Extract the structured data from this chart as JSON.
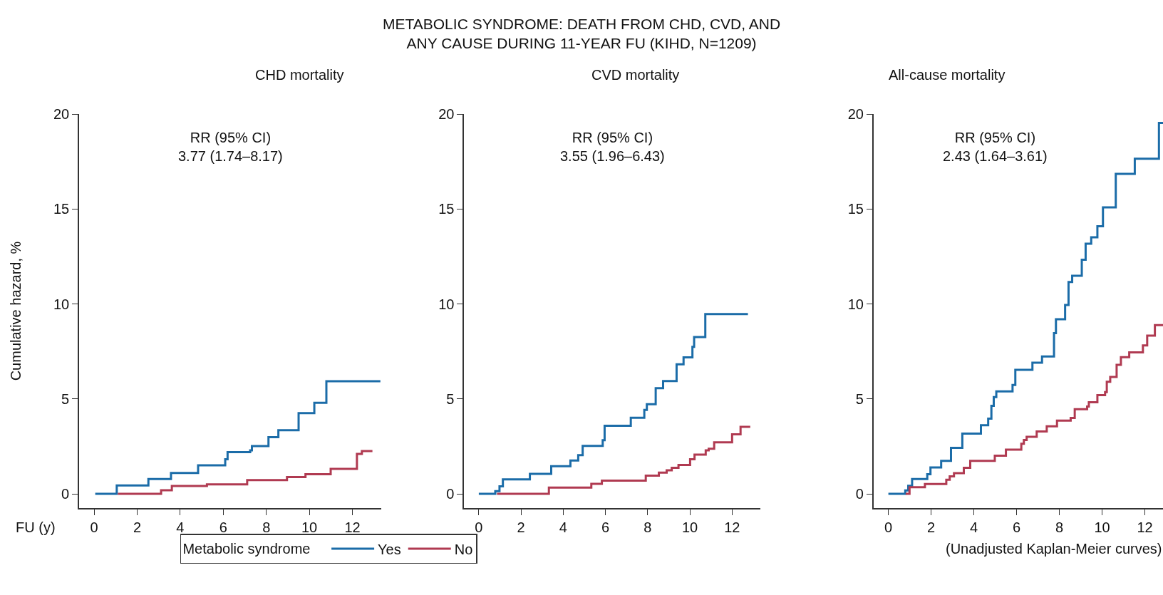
{
  "chart_data": [
    {
      "type": "step",
      "subtitle": "CHD mortality",
      "xlabel": "FU (y)",
      "ylabel": "Cumulative hazard, %",
      "legend_title": "Metabolic syndrome",
      "legend": "bottom",
      "xlim": [
        -0.7,
        13.35
      ],
      "xticks": [
        0,
        2,
        4,
        6,
        8,
        10,
        12
      ],
      "ylim": [
        -0.75,
        20
      ],
      "yticks": [
        0,
        5,
        10,
        15,
        20
      ],
      "annotations": [
        "RR (95% CI)\n3.77 (1.74–8.17)"
      ],
      "series": [
        {
          "name": "Yes",
          "color": "#1b6ca8",
          "x": [
            0.05,
            1.05,
            2.52,
            3.57,
            4.83,
            6.09,
            6.2,
            7.25,
            7.33,
            8.1,
            8.56,
            9.5,
            10.23,
            10.79,
            13.3
          ],
          "values": [
            0,
            0.44,
            0.78,
            1.1,
            1.5,
            1.82,
            2.2,
            2.29,
            2.51,
            2.98,
            3.35,
            4.25,
            4.79,
            5.93,
            5.93
          ]
        },
        {
          "name": "No",
          "color": "#b03a51",
          "x": [
            1.1,
            3.11,
            3.61,
            5.24,
            7.11,
            8.96,
            9.82,
            10.99,
            12.21,
            12.44,
            12.93
          ],
          "values": [
            0,
            0.19,
            0.41,
            0.5,
            0.72,
            0.88,
            1.03,
            1.31,
            2.1,
            2.25,
            2.25
          ]
        }
      ]
    },
    {
      "type": "step",
      "title": "METABOLIC SYNDROME: DEATH FROM CHD, CVD, AND\nANY CAUSE DURING 11-YEAR FU (KIHD, N=1209)",
      "subtitle": "CVD mortality",
      "xlim": [
        -0.7,
        13.35
      ],
      "xticks": [
        0,
        2,
        4,
        6,
        8,
        10,
        12
      ],
      "ylim": [
        -0.75,
        20
      ],
      "yticks": [
        0,
        5,
        10,
        15,
        20
      ],
      "annotations": [
        "RR (95% CI)\n3.55 (1.96–6.43)"
      ],
      "series": [
        {
          "color": "#1b6ca8",
          "x": [
            0,
            0.78,
            0.98,
            1.14,
            2.42,
            3.43,
            4.34,
            4.71,
            4.92,
            5.87,
            5.96,
            7.2,
            7.84,
            7.96,
            8.38,
            8.73,
            9.37,
            9.7,
            10.12,
            10.2,
            10.73,
            12.75
          ],
          "values": [
            0,
            0.14,
            0.39,
            0.76,
            1.05,
            1.45,
            1.75,
            2.04,
            2.52,
            2.82,
            3.58,
            4.01,
            4.42,
            4.72,
            5.56,
            5.94,
            6.82,
            7.19,
            7.74,
            8.26,
            9.47,
            9.47
          ]
        },
        {
          "color": "#b03a51",
          "x": [
            0.86,
            3.32,
            5.33,
            5.83,
            7.91,
            8.53,
            8.9,
            9.14,
            9.46,
            10.01,
            10.22,
            10.75,
            10.89,
            11.15,
            12.0,
            12.4,
            12.86
          ],
          "values": [
            0,
            0.33,
            0.53,
            0.69,
            0.96,
            1.12,
            1.24,
            1.37,
            1.52,
            1.82,
            2.06,
            2.29,
            2.37,
            2.71,
            3.13,
            3.53,
            3.53
          ]
        }
      ]
    },
    {
      "type": "step",
      "subtitle": "All-cause mortality",
      "xlim": [
        -0.7,
        12.85
      ],
      "xticks": [
        0,
        2,
        4,
        6,
        8,
        10,
        12
      ],
      "ylim": [
        -0.75,
        20
      ],
      "yticks": [
        0,
        5,
        10,
        15,
        20
      ],
      "annotations": [
        "RR (95% CI)\n2.43 (1.64–3.61)",
        "(Unadjusted Kaplan-Meier curves)"
      ],
      "series": [
        {
          "color": "#1b6ca8",
          "x": [
            0,
            0.79,
            0.93,
            1.11,
            1.82,
            1.97,
            2.47,
            2.93,
            3.46,
            4.33,
            4.67,
            4.82,
            4.93,
            5.05,
            5.81,
            5.94,
            6.74,
            7.19,
            7.75,
            7.84,
            8.27,
            8.43,
            8.6,
            9.05,
            9.23,
            9.49,
            9.78,
            10.04,
            10.64,
            11.53,
            12.66,
            12.85
          ],
          "values": [
            0,
            0.18,
            0.42,
            0.78,
            1.03,
            1.39,
            1.74,
            2.42,
            3.17,
            3.61,
            3.96,
            4.63,
            5.09,
            5.39,
            5.73,
            6.53,
            6.9,
            7.23,
            8.46,
            9.19,
            9.94,
            11.15,
            11.48,
            12.33,
            13.17,
            13.51,
            14.09,
            15.08,
            16.85,
            17.65,
            19.53,
            19.53
          ]
        },
        {
          "color": "#b03a51",
          "x": [
            0.81,
            0.99,
            1.71,
            2.71,
            2.87,
            3.07,
            3.53,
            3.83,
            4.98,
            5.5,
            6.22,
            6.34,
            6.47,
            6.94,
            7.41,
            7.89,
            8.53,
            8.72,
            9.3,
            9.38,
            9.78,
            10.14,
            10.22,
            10.38,
            10.68,
            10.88,
            11.27,
            11.91,
            12.11,
            12.47,
            12.85
          ],
          "values": [
            0,
            0.35,
            0.52,
            0.74,
            0.92,
            1.09,
            1.37,
            1.74,
            2.01,
            2.33,
            2.64,
            2.83,
            3.0,
            3.28,
            3.56,
            3.86,
            4.0,
            4.46,
            4.6,
            4.82,
            5.2,
            5.36,
            5.9,
            6.15,
            6.79,
            7.2,
            7.45,
            7.81,
            8.33,
            8.88,
            8.88
          ]
        }
      ]
    }
  ]
}
